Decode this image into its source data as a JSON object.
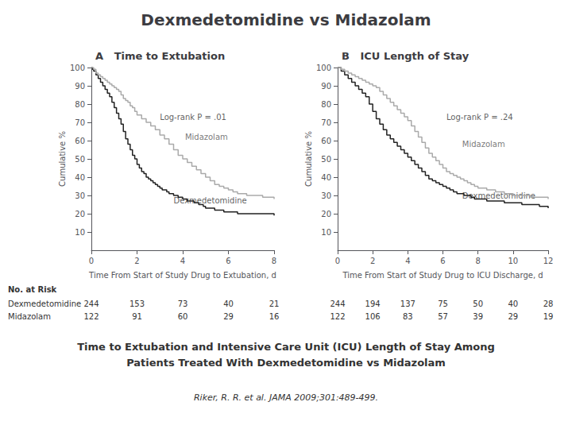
{
  "title": "Dexmedetomidine vs Midazolam",
  "subtitle": [
    "Time to Extubation and Intensive Care Unit (ICU) Length of Stay Among",
    "Patients Treated With Dexmedetomidine vs Midazolam"
  ],
  "citation": "Riker, R. R. et al. JAMA 2009;301:489-499.",
  "risk_label": "No. at Risk",
  "risk_rows": [
    "Dexmedetomidine",
    "Midazolam"
  ],
  "chart_data": [
    {
      "type": "step",
      "title": "A   Time to Extubation",
      "x_label": "Time From Start of Study Drug to Extubation, d",
      "y_label": "Cumulative %",
      "xlim": [
        0,
        8
      ],
      "xticks": [
        0,
        2,
        4,
        6,
        8
      ],
      "ylim": [
        0,
        100
      ],
      "yticks": [
        10,
        20,
        30,
        40,
        50,
        60,
        70,
        80,
        90,
        100
      ],
      "grid": false,
      "series": [
        {
          "color": "#222222",
          "x": [
            0,
            0.05,
            0.1,
            0.2,
            0.3,
            0.4,
            0.5,
            0.6,
            0.7,
            0.8,
            0.9,
            1.0,
            1.1,
            1.2,
            1.3,
            1.4,
            1.5,
            1.6,
            1.7,
            1.8,
            1.9,
            2.0,
            2.1,
            2.2,
            2.3,
            2.4,
            2.5,
            2.6,
            2.7,
            2.8,
            2.9,
            3.0,
            3.1,
            3.2,
            3.3,
            3.4,
            3.5,
            3.6,
            3.7,
            3.8,
            3.9,
            4.0,
            4.1,
            4.2,
            4.3,
            4.4,
            4.5,
            4.6,
            4.7,
            4.8,
            4.9,
            5.0,
            5.2,
            5.4,
            5.6,
            5.8,
            6.0,
            6.2,
            6.4,
            6.6,
            6.8,
            7.0,
            7.5,
            8.0
          ],
          "values": [
            100,
            99,
            98,
            96,
            94,
            92,
            90,
            88,
            86,
            84,
            81,
            78,
            75,
            72,
            69,
            65,
            61,
            58,
            55,
            52,
            50,
            47,
            45,
            43,
            42,
            40,
            39,
            38,
            37,
            36,
            35,
            34,
            33,
            33,
            32,
            31,
            31,
            30,
            30,
            29,
            29,
            28,
            28,
            27,
            27,
            27,
            26,
            26,
            25,
            25,
            24,
            23,
            23,
            22,
            22,
            21,
            21,
            21,
            20,
            20,
            20,
            20,
            20,
            19
          ]
        },
        {
          "color": "#aaaaaa",
          "x": [
            0,
            0.1,
            0.2,
            0.3,
            0.4,
            0.5,
            0.6,
            0.7,
            0.8,
            0.9,
            1.0,
            1.1,
            1.2,
            1.3,
            1.4,
            1.5,
            1.6,
            1.7,
            1.8,
            1.9,
            2.0,
            2.2,
            2.4,
            2.6,
            2.8,
            3.0,
            3.2,
            3.4,
            3.6,
            3.8,
            4.0,
            4.2,
            4.4,
            4.6,
            4.8,
            5.0,
            5.2,
            5.4,
            5.6,
            5.8,
            6.0,
            6.2,
            6.4,
            6.6,
            6.8,
            7.0,
            7.5,
            8.0
          ],
          "values": [
            100,
            99,
            97,
            96,
            95,
            94,
            93,
            92,
            91,
            90,
            89,
            88,
            87,
            85,
            83,
            82,
            81,
            79,
            78,
            76,
            74,
            72,
            70,
            68,
            66,
            63,
            61,
            58,
            55,
            52,
            50,
            48,
            46,
            44,
            42,
            40,
            38,
            36,
            35,
            34,
            33,
            32,
            31,
            31,
            30,
            30,
            29,
            28
          ]
        }
      ],
      "annotations": [
        {
          "text": "Log-rank P = .01",
          "x": 3.0,
          "y": 73
        },
        {
          "text": "Midazolam",
          "x": 4.1,
          "y": 62,
          "color": "#555555"
        },
        {
          "text": "Dexmedetomidine",
          "x": 3.6,
          "y": 27,
          "color": "#333333"
        }
      ],
      "risk_x": [
        0,
        2,
        4,
        6,
        8
      ],
      "risk_values": [
        [
          244,
          153,
          73,
          40,
          21
        ],
        [
          122,
          91,
          60,
          29,
          16
        ]
      ]
    },
    {
      "type": "step",
      "title": "B   ICU Length of Stay",
      "x_label": "Time From Start of Study Drug to ICU Discharge, d",
      "y_label": "Cumulative %",
      "xlim": [
        0,
        12
      ],
      "xticks": [
        0,
        2,
        4,
        6,
        8,
        10,
        12
      ],
      "ylim": [
        0,
        100
      ],
      "yticks": [
        10,
        20,
        30,
        40,
        50,
        60,
        70,
        80,
        90,
        100
      ],
      "grid": false,
      "series": [
        {
          "color": "#222222",
          "x": [
            0,
            0.2,
            0.4,
            0.6,
            0.8,
            1.0,
            1.2,
            1.4,
            1.6,
            1.8,
            2.0,
            2.2,
            2.4,
            2.6,
            2.8,
            3.0,
            3.2,
            3.4,
            3.6,
            3.8,
            4.0,
            4.2,
            4.4,
            4.6,
            4.8,
            5.0,
            5.2,
            5.4,
            5.6,
            5.8,
            6.0,
            6.2,
            6.4,
            6.6,
            6.8,
            7.0,
            7.2,
            7.4,
            7.6,
            7.8,
            8.0,
            8.5,
            9.0,
            9.5,
            10.0,
            10.5,
            11.0,
            11.5,
            12.0
          ],
          "values": [
            100,
            98,
            96,
            94,
            92,
            90,
            88,
            86,
            84,
            80,
            76,
            72,
            69,
            66,
            63,
            61,
            59,
            57,
            55,
            53,
            51,
            49,
            47,
            45,
            43,
            41,
            39,
            38,
            37,
            36,
            35,
            34,
            33,
            32,
            31,
            31,
            30,
            30,
            29,
            28,
            28,
            27,
            27,
            26,
            26,
            25,
            25,
            24,
            23
          ]
        },
        {
          "color": "#aaaaaa",
          "x": [
            0,
            0.2,
            0.4,
            0.6,
            0.8,
            1.0,
            1.2,
            1.4,
            1.6,
            1.8,
            2.0,
            2.2,
            2.4,
            2.6,
            2.8,
            3.0,
            3.2,
            3.4,
            3.6,
            3.8,
            4.0,
            4.2,
            4.4,
            4.6,
            4.8,
            5.0,
            5.2,
            5.4,
            5.6,
            5.8,
            6.0,
            6.2,
            6.4,
            6.6,
            6.8,
            7.0,
            7.2,
            7.4,
            7.6,
            7.8,
            8.0,
            8.5,
            9.0,
            9.5,
            10.0,
            10.5,
            11.0,
            11.5,
            12.0
          ],
          "values": [
            100,
            99,
            98,
            97,
            96,
            95,
            94,
            93,
            92,
            91,
            90,
            89,
            87,
            85,
            83,
            81,
            79,
            77,
            75,
            73,
            71,
            68,
            65,
            62,
            59,
            56,
            53,
            51,
            49,
            47,
            45,
            43,
            42,
            41,
            40,
            39,
            38,
            37,
            36,
            35,
            34,
            33,
            32,
            31,
            30,
            30,
            29,
            29,
            28
          ]
        }
      ],
      "annotations": [
        {
          "text": "Log-rank P = .24",
          "x": 6.2,
          "y": 73
        },
        {
          "text": "Midazolam",
          "x": 7.1,
          "y": 58,
          "color": "#555555"
        },
        {
          "text": "Dexmedetomidine",
          "x": 7.1,
          "y": 30,
          "color": "#333333"
        }
      ],
      "risk_x": [
        0,
        2,
        4,
        6,
        8,
        10,
        12
      ],
      "risk_values": [
        [
          244,
          194,
          137,
          75,
          50,
          40,
          28
        ],
        [
          122,
          106,
          83,
          57,
          39,
          29,
          19
        ]
      ]
    }
  ]
}
